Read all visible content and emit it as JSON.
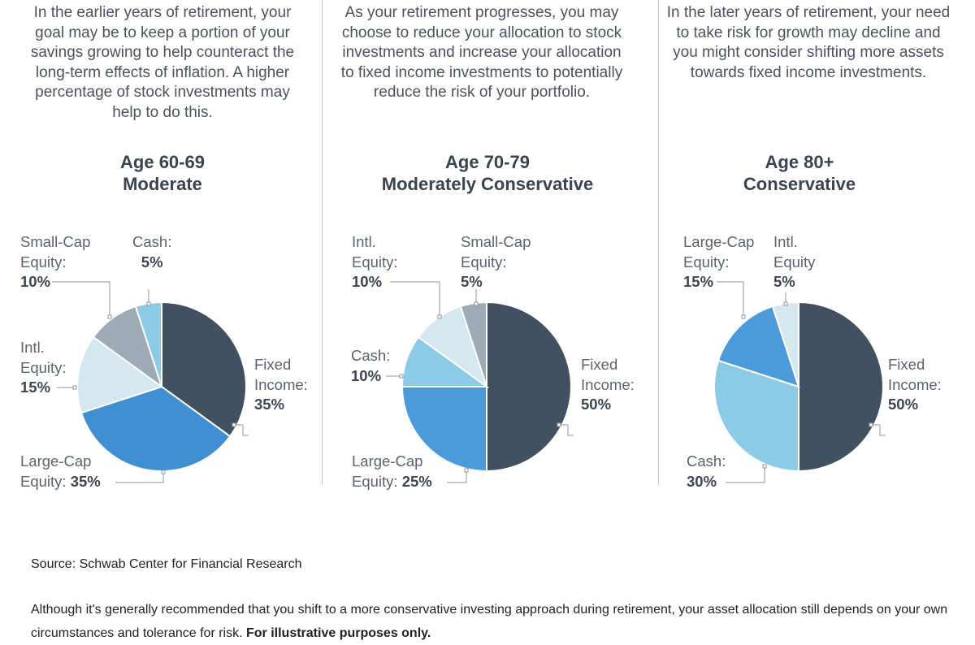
{
  "columns": [
    {
      "description": "In the earlier years of retirement, your goal may be to keep a portion of your savings growing to help counteract the long-term effects of inflation. A higher percentage of stock investments may help to do this.",
      "age": "Age 60-69",
      "profile": "Moderate"
    },
    {
      "description": "As your retirement progresses, you may choose to reduce your allocation to stock investments and increase your allocation to fixed income investments to potentially reduce the risk of your portfolio.",
      "age": "Age 70-79",
      "profile": "Moderately Conservative"
    },
    {
      "description": "In the later years of retirement, your need to take risk for growth may decline and you might consider shifting more assets towards fixed income investments.",
      "age": "Age 80+",
      "profile": "Conservative"
    }
  ],
  "chart_data": [
    {
      "type": "pie",
      "title": "Age 60-69 Moderate",
      "labels": [
        "Fixed Income",
        "Large-Cap Equity",
        "Intl. Equity",
        "Small-Cap Equity",
        "Cash"
      ],
      "values": [
        35,
        35,
        15,
        10,
        5
      ],
      "display": [
        "Fixed Income:",
        "Large-Cap Equity:",
        "Intl. Equity:",
        "Small-Cap Equity:",
        "Cash:"
      ],
      "value_labels": [
        "35%",
        "35%",
        "15%",
        "10%",
        "5%"
      ],
      "colors": [
        "#425161",
        "#3f8fd2",
        "#d5e8f0",
        "#9eabb7",
        "#8ccbe6"
      ]
    },
    {
      "type": "pie",
      "title": "Age 70-79 Moderately Conservative",
      "labels": [
        "Fixed Income",
        "Large-Cap Equity",
        "Cash",
        "Intl. Equity",
        "Small-Cap Equity"
      ],
      "values": [
        50,
        25,
        10,
        10,
        5
      ],
      "display": [
        "Fixed Income:",
        "Large-Cap Equity:",
        "Cash:",
        "Intl. Equity:",
        "Small-Cap Equity:"
      ],
      "value_labels": [
        "50%",
        "25%",
        "10%",
        "10%",
        "5%"
      ],
      "colors": [
        "#425161",
        "#4b9ad9",
        "#8ccbe6",
        "#d5e8f0",
        "#9eabb7"
      ]
    },
    {
      "type": "pie",
      "title": "Age 80+ Conservative",
      "labels": [
        "Fixed Income",
        "Cash",
        "Large-Cap Equity",
        "Intl. Equity"
      ],
      "values": [
        50,
        30,
        15,
        5
      ],
      "display": [
        "Fixed Income:",
        "Cash:",
        "Large-Cap Equity:",
        "Intl Equity"
      ],
      "value_labels": [
        "50%",
        "30%",
        "15%",
        "5%"
      ],
      "colors": [
        "#425161",
        "#8ccbe6",
        "#4b9ad9",
        "#d5e8f0"
      ]
    }
  ],
  "source": "Source: Schwab Center for Financial Research",
  "note": {
    "text": "Although it's generally recommended that you shift to a more conservative investing approach during retirement, your asset allocation still depends on your own circumstances and tolerance for risk.",
    "bold": "For illustrative purposes only."
  }
}
